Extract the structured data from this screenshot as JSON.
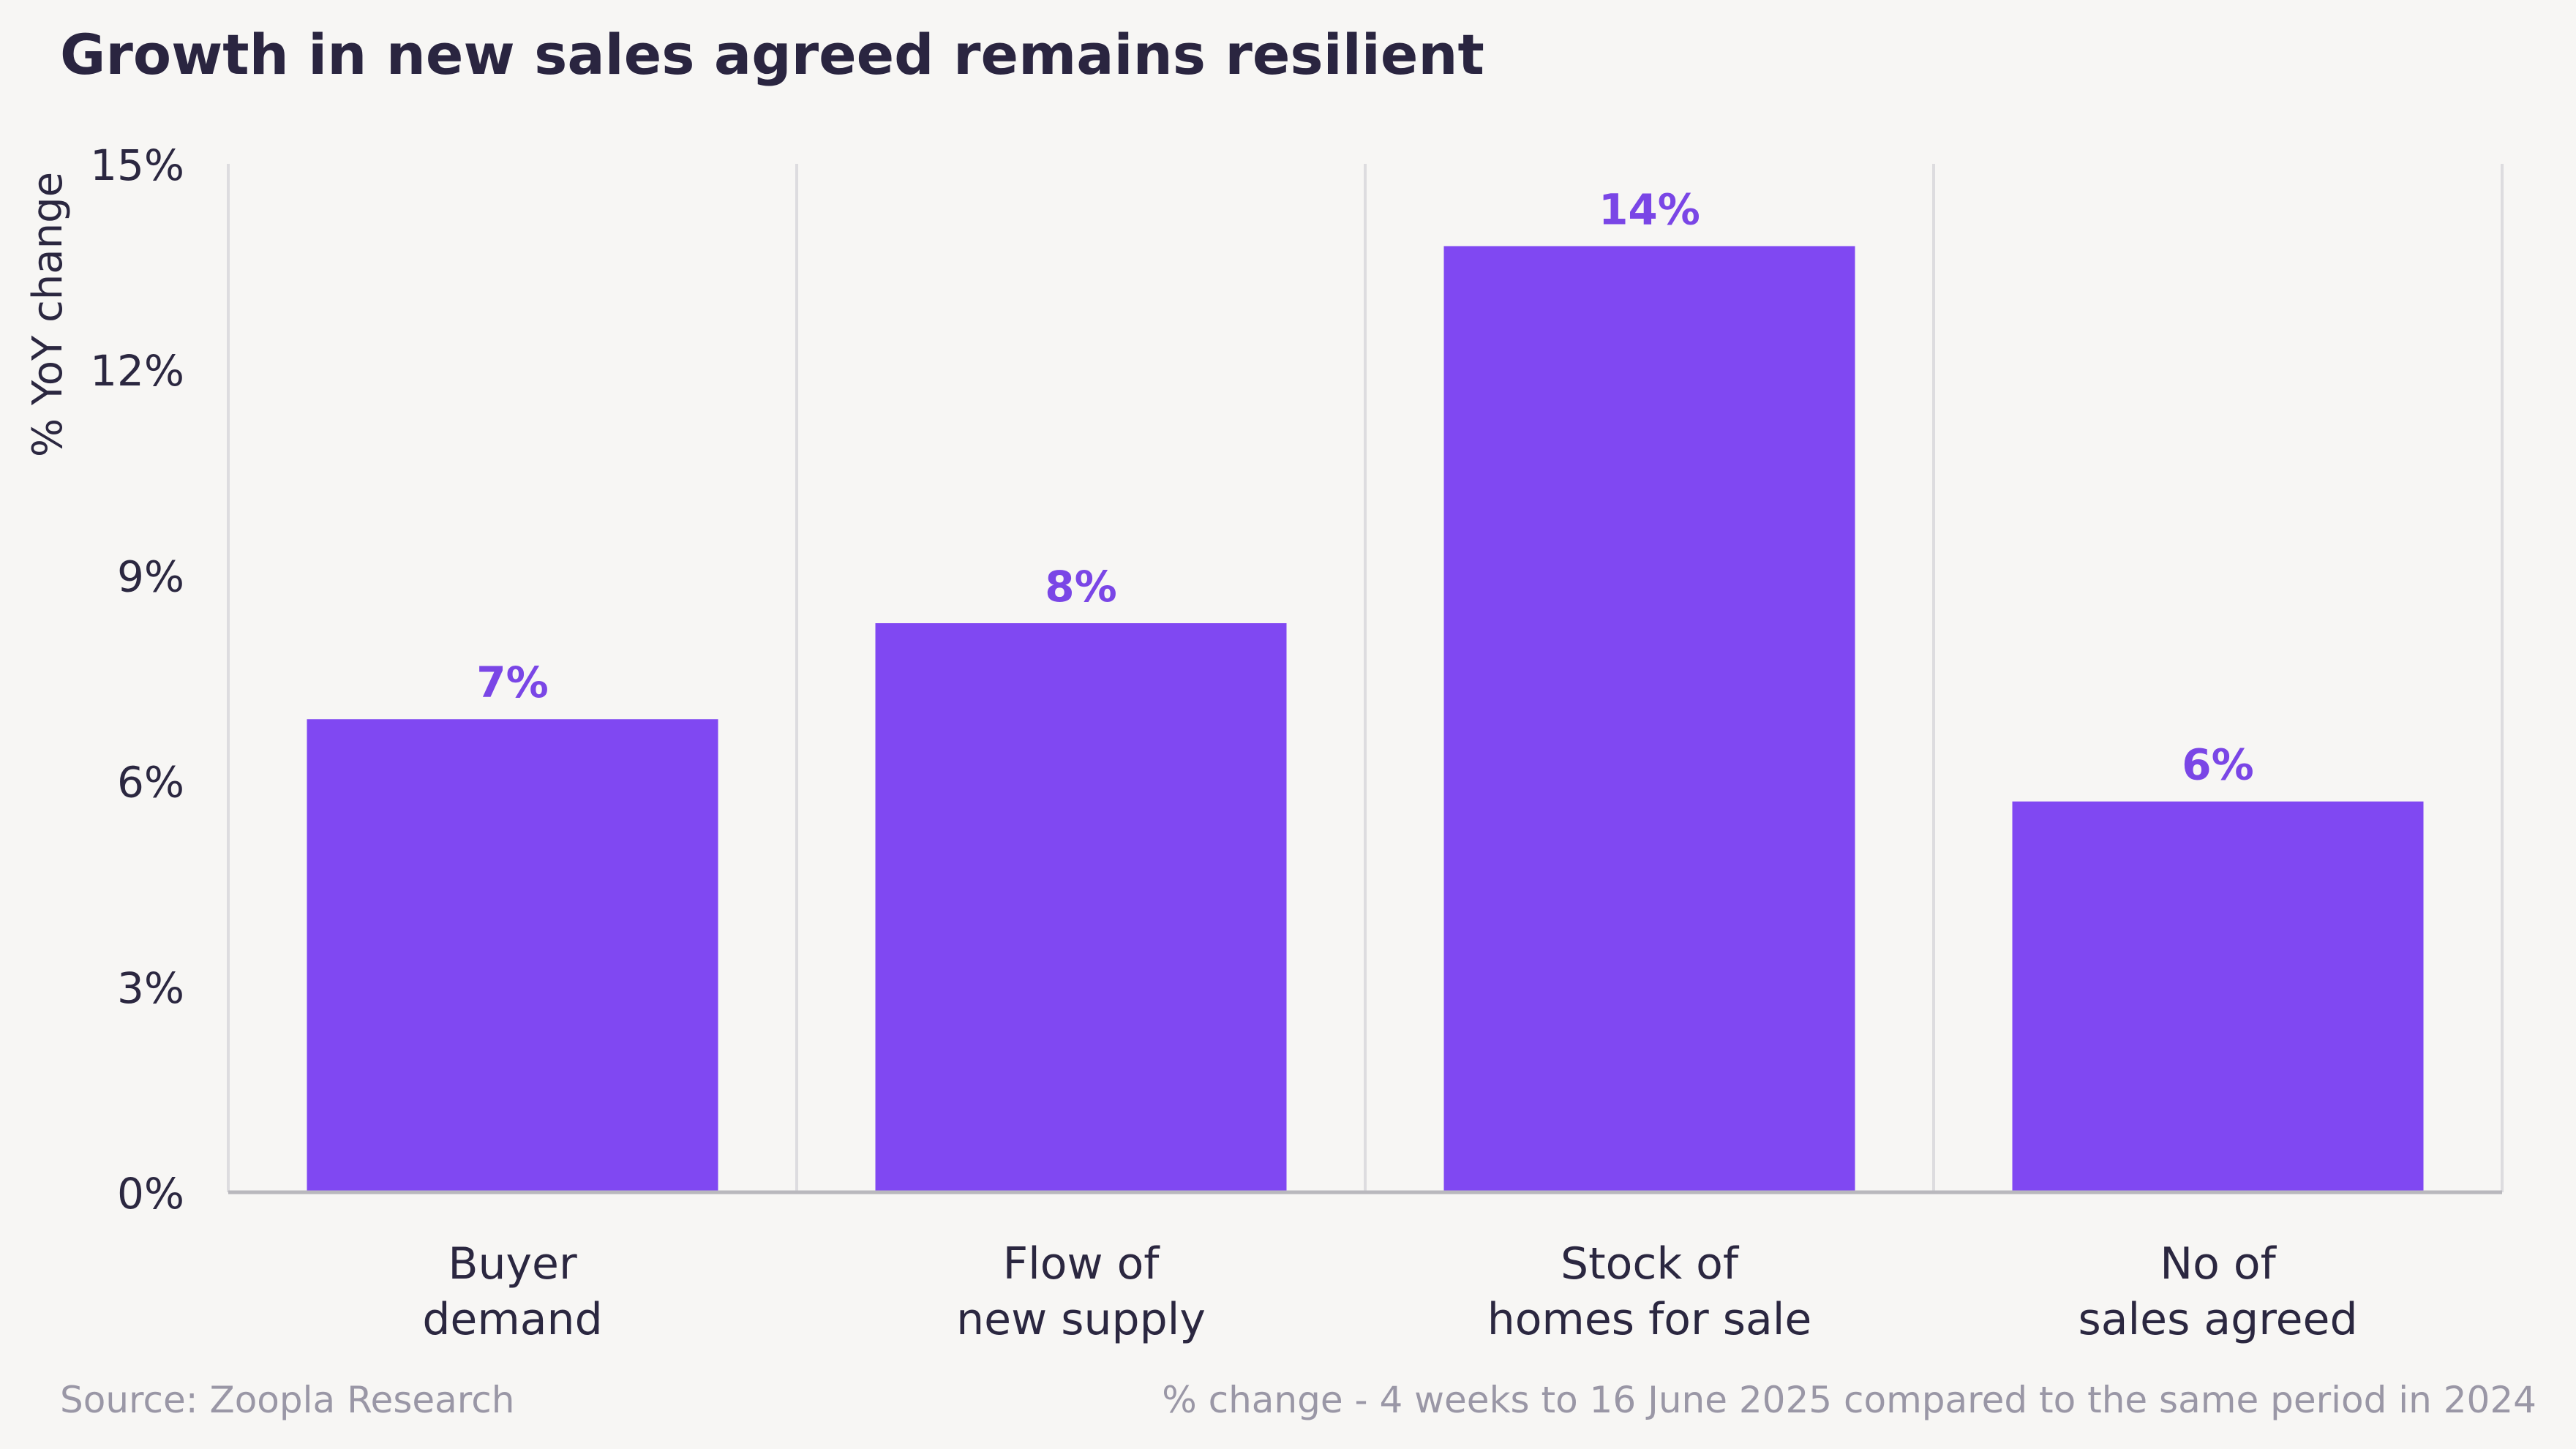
{
  "title": "Growth in new sales agreed remains resilient",
  "footer": {
    "source": "Source: Zoopla Research",
    "note": "% change - 4 weeks to 16 June 2025 compared to the same period in 2024"
  },
  "colors": {
    "bar": "#8048f2",
    "label": "#7a46e6",
    "grid": "#dddcdf",
    "axis": "#b9b8bd",
    "text": "#2b2740"
  },
  "chart_data": {
    "type": "bar",
    "categories": [
      [
        "Buyer",
        "demand"
      ],
      [
        "Flow of",
        "new supply"
      ],
      [
        "Stock of",
        "homes for sale"
      ],
      [
        "No of",
        "sales agreed"
      ]
    ],
    "values": [
      6.9,
      8.3,
      13.8,
      5.7
    ],
    "data_labels": [
      "7%",
      "8%",
      "14%",
      "6%"
    ],
    "ylabel": "% YoY change",
    "ylim": [
      0,
      15
    ],
    "yticks": [
      0,
      3,
      6,
      9,
      12,
      15
    ],
    "ytick_labels": [
      "0%",
      "3%",
      "6%",
      "9%",
      "12%",
      "15%"
    ],
    "grid": "vertical separators between categories",
    "legend": "none"
  }
}
